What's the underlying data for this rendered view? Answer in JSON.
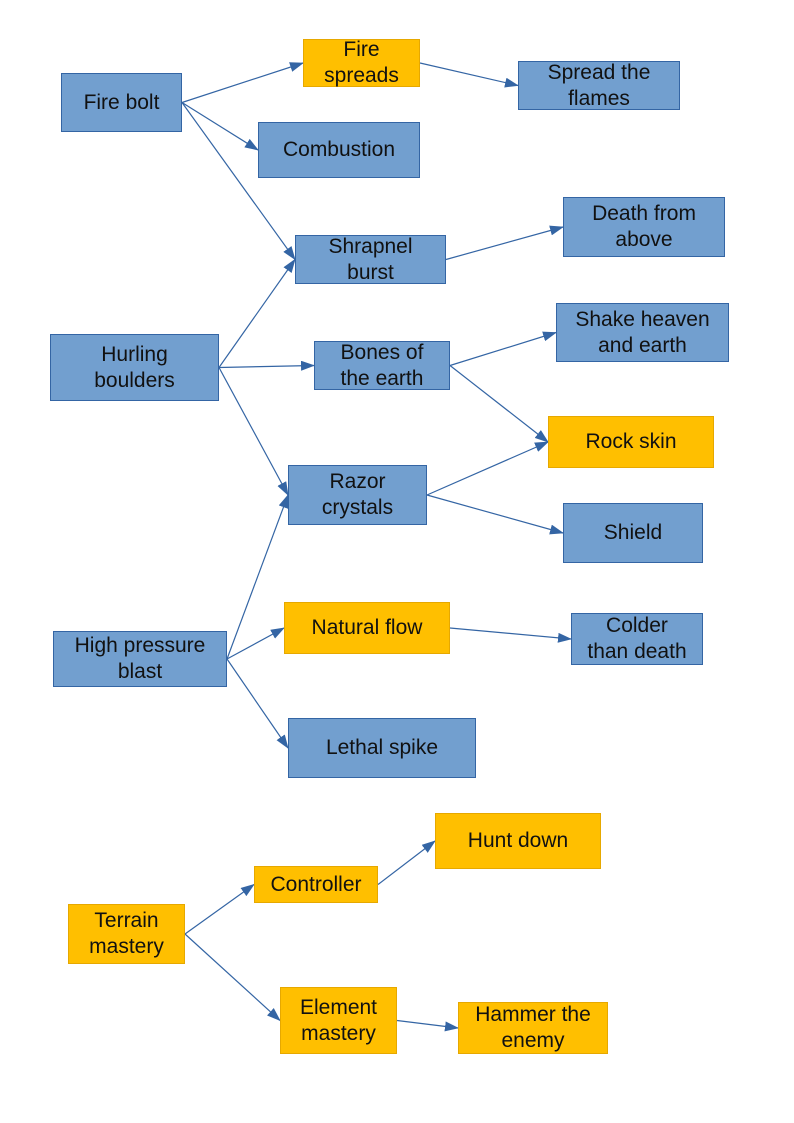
{
  "colors": {
    "blue_fill": "#729fcf",
    "blue_border": "#3465a4",
    "orange_fill": "#ffbf00",
    "orange_border": "#e6a800",
    "arrow": "#3465a4"
  },
  "nodes": {
    "fire_bolt": {
      "label": "Fire bolt",
      "style": "blue"
    },
    "fire_spreads": {
      "label": "Fire\nspreads",
      "style": "orange"
    },
    "spread_the_flames": {
      "label": "Spread the\nflames",
      "style": "blue"
    },
    "combustion": {
      "label": "Combustion",
      "style": "blue"
    },
    "shrapnel_burst": {
      "label": "Shrapnel\nburst",
      "style": "blue"
    },
    "death_from_above": {
      "label": "Death from\nabove",
      "style": "blue"
    },
    "hurling_boulders": {
      "label": "Hurling\nboulders",
      "style": "blue"
    },
    "bones_of_the_earth": {
      "label": "Bones of\nthe earth",
      "style": "blue"
    },
    "shake_heaven": {
      "label": "Shake heaven\nand earth",
      "style": "blue"
    },
    "rock_skin": {
      "label": "Rock skin",
      "style": "orange"
    },
    "razor_crystals": {
      "label": "Razor\ncrystals",
      "style": "blue"
    },
    "shield": {
      "label": "Shield",
      "style": "blue"
    },
    "high_pressure": {
      "label": "High pressure\nblast",
      "style": "blue"
    },
    "natural_flow": {
      "label": "Natural flow",
      "style": "orange"
    },
    "colder_than_death": {
      "label": "Colder\nthan death",
      "style": "blue"
    },
    "lethal_spike": {
      "label": "Lethal spike",
      "style": "blue"
    },
    "terrain_mastery": {
      "label": "Terrain\nmastery",
      "style": "orange"
    },
    "controller": {
      "label": "Controller",
      "style": "orange"
    },
    "hunt_down": {
      "label": "Hunt down",
      "style": "orange"
    },
    "element_mastery": {
      "label": "Element\nmastery",
      "style": "orange"
    },
    "hammer_the_enemy": {
      "label": "Hammer the\nenemy",
      "style": "orange"
    }
  },
  "edges": [
    [
      "fire_bolt",
      "fire_spreads"
    ],
    [
      "fire_bolt",
      "combustion"
    ],
    [
      "fire_bolt",
      "shrapnel_burst"
    ],
    [
      "fire_spreads",
      "spread_the_flames"
    ],
    [
      "shrapnel_burst",
      "death_from_above"
    ],
    [
      "hurling_boulders",
      "shrapnel_burst"
    ],
    [
      "hurling_boulders",
      "bones_of_the_earth"
    ],
    [
      "hurling_boulders",
      "razor_crystals"
    ],
    [
      "bones_of_the_earth",
      "shake_heaven"
    ],
    [
      "bones_of_the_earth",
      "rock_skin"
    ],
    [
      "razor_crystals",
      "rock_skin"
    ],
    [
      "razor_crystals",
      "shield"
    ],
    [
      "high_pressure",
      "razor_crystals"
    ],
    [
      "high_pressure",
      "natural_flow"
    ],
    [
      "high_pressure",
      "lethal_spike"
    ],
    [
      "natural_flow",
      "colder_than_death"
    ],
    [
      "terrain_mastery",
      "controller"
    ],
    [
      "terrain_mastery",
      "element_mastery"
    ],
    [
      "controller",
      "hunt_down"
    ],
    [
      "element_mastery",
      "hammer_the_enemy"
    ]
  ]
}
